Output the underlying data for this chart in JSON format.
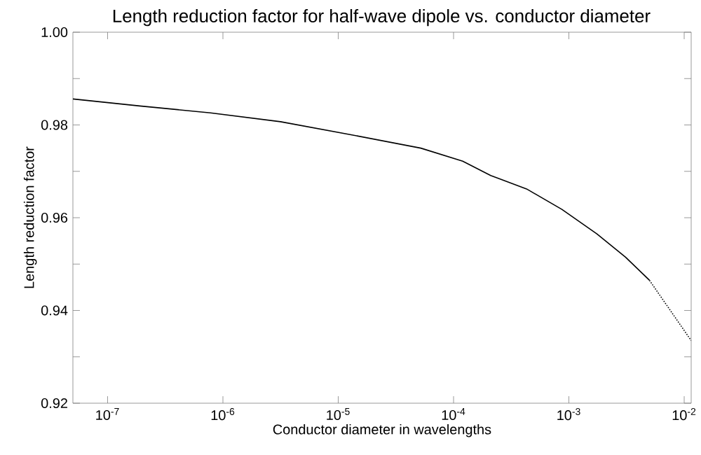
{
  "chart_data": {
    "type": "line",
    "title": "Length reduction factor for half-wave dipole vs. conductor diameter",
    "xlabel": "Conductor diameter in wavelengths",
    "ylabel": "Length reduction factor",
    "log": "x",
    "xlim": [
      5e-08,
      0.0115
    ],
    "ylim": [
      0.92,
      1.0
    ],
    "xticks": [
      {
        "value": 1e-07,
        "label": "10$^{-7}$"
      },
      {
        "value": 1e-06,
        "label": "10$^{-6}$"
      },
      {
        "value": 1e-05,
        "label": "10$^{-5}$"
      },
      {
        "value": 0.0001,
        "label": "10$^{-4}$"
      },
      {
        "value": 0.001,
        "label": "10$^{-3}$"
      },
      {
        "value": 0.01,
        "label": "10$^{-2}$"
      }
    ],
    "yticks": [
      0.92,
      {
        "value": 0.93,
        "label": null
      },
      0.94,
      {
        "value": 0.95,
        "label": null
      },
      0.96,
      {
        "value": 0.97,
        "label": null
      },
      0.98,
      {
        "value": 0.99,
        "label": null
      },
      "1.00"
    ],
    "series": [
      {
        "color": "#000000",
        "line_style": "solid",
        "x": [
          5e-08,
          1.9e-07,
          7.8e-07,
          3.16e-06,
          1.29e-05,
          5.2e-05,
          0.00012,
          0.00021,
          0.00043,
          0.00087,
          0.00175,
          0.0031,
          0.005
        ],
        "values": [
          0.9856,
          0.9841,
          0.9826,
          0.9807,
          0.9779,
          0.975,
          0.9722,
          0.9691,
          0.9662,
          0.9618,
          0.9565,
          0.9515,
          0.9465
        ]
      },
      {
        "color": "#000000",
        "line_style": "dotted",
        "x": [
          0.005,
          0.0115
        ],
        "values": [
          0.9465,
          0.9335
        ]
      }
    ]
  }
}
